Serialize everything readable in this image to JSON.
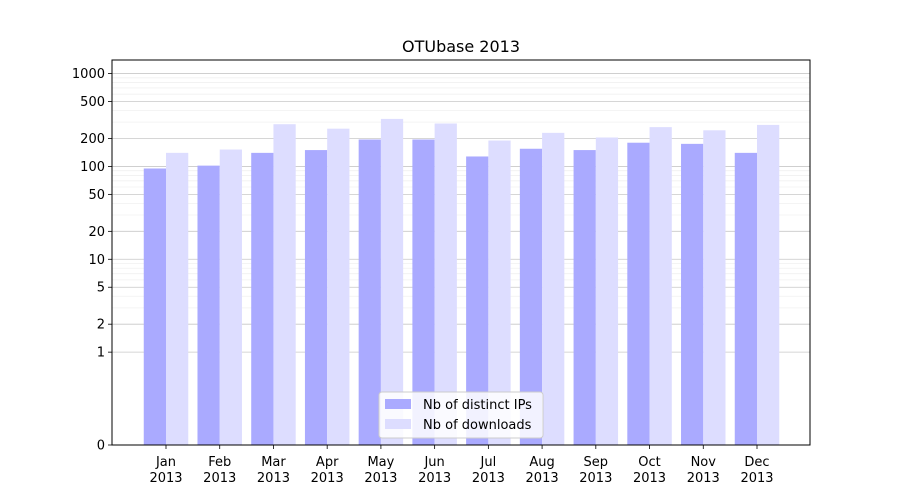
{
  "chart_data": {
    "type": "bar",
    "title": "OTUbase 2013",
    "xlabel": "",
    "ylabel": "",
    "yscale": "symlog",
    "ylim": [
      0,
      1400
    ],
    "yticks": [
      0,
      1,
      2,
      5,
      10,
      20,
      50,
      100,
      200,
      500,
      1000
    ],
    "ytick_labels": [
      "0",
      "1",
      "2",
      "5",
      "10",
      "20",
      "50",
      "100",
      "200",
      "500",
      "1000"
    ],
    "grid": true,
    "legend_position": "bottom-center",
    "categories": [
      "Jan\n2013",
      "Feb\n2013",
      "Mar\n2013",
      "Apr\n2013",
      "May\n2013",
      "Jun\n2013",
      "Jul\n2013",
      "Aug\n2013",
      "Sep\n2013",
      "Oct\n2013",
      "Nov\n2013",
      "Dec\n2013"
    ],
    "series": [
      {
        "name": "Nb of distinct IPs",
        "color": "#aaaaff",
        "values": [
          95,
          102,
          140,
          150,
          195,
          195,
          128,
          155,
          150,
          180,
          175,
          140
        ]
      },
      {
        "name": "Nb of downloads",
        "color": "#ddddff",
        "values": [
          140,
          152,
          285,
          255,
          325,
          290,
          190,
          230,
          205,
          265,
          245,
          280
        ]
      }
    ]
  }
}
